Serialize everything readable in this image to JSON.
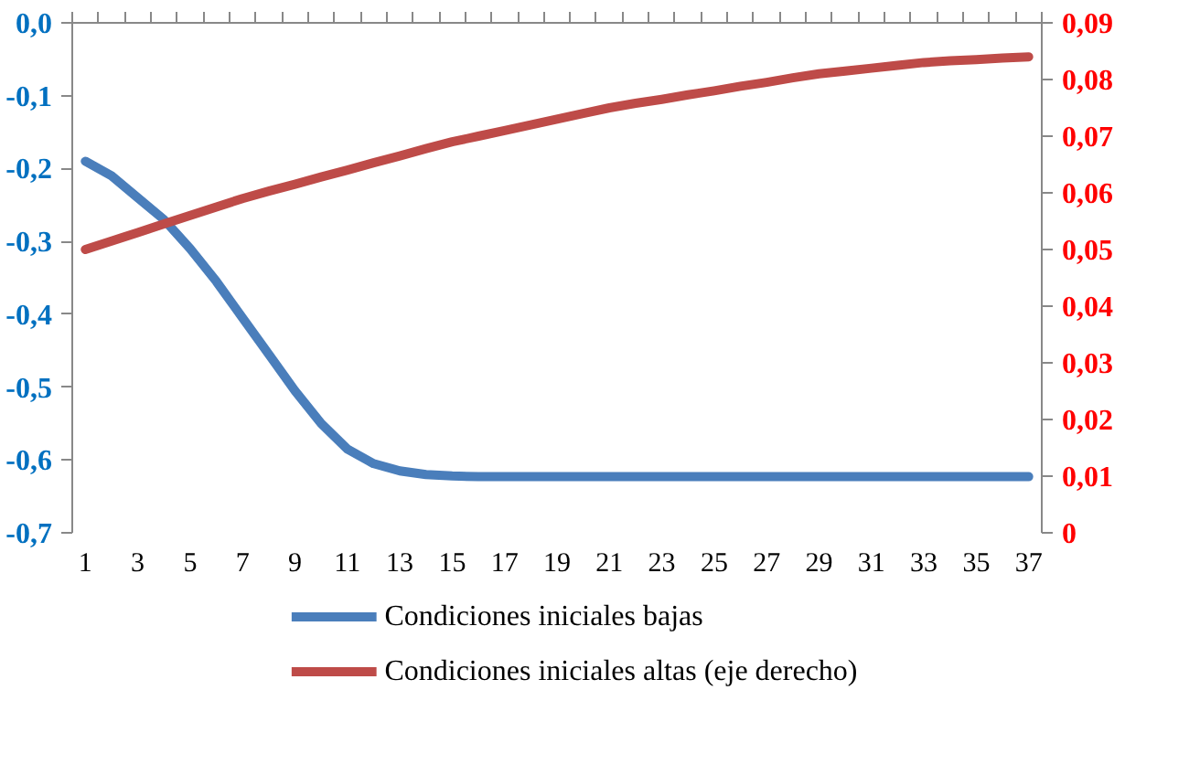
{
  "chart_data": {
    "type": "line",
    "x": [
      1,
      2,
      3,
      4,
      5,
      6,
      7,
      8,
      9,
      10,
      11,
      12,
      13,
      14,
      15,
      16,
      17,
      18,
      19,
      20,
      21,
      22,
      23,
      24,
      25,
      26,
      27,
      28,
      29,
      30,
      31,
      32,
      33,
      34,
      35,
      36,
      37
    ],
    "xlim": [
      0.5,
      37.5
    ],
    "xticks": [
      1,
      3,
      5,
      7,
      9,
      11,
      13,
      15,
      17,
      19,
      21,
      23,
      25,
      27,
      29,
      31,
      33,
      35,
      37
    ],
    "ylim": [
      -0.7,
      0
    ],
    "yticks": [
      {
        "value": 0,
        "label": "0,0"
      },
      {
        "value": -0.1,
        "label": "-0,1"
      },
      {
        "value": -0.2,
        "label": "-0,2"
      },
      {
        "value": -0.3,
        "label": "-0,3"
      },
      {
        "value": -0.4,
        "label": "-0,4"
      },
      {
        "value": -0.5,
        "label": "-0,5"
      },
      {
        "value": -0.6,
        "label": "-0,6"
      },
      {
        "value": -0.7,
        "label": "-0,7"
      }
    ],
    "y2lim": [
      0,
      0.09
    ],
    "y2ticks": [
      0,
      {
        "value": 0.01,
        "label": "0,01"
      },
      {
        "value": 0.02,
        "label": "0,02"
      },
      {
        "value": 0.03,
        "label": "0,03"
      },
      {
        "value": 0.04,
        "label": "0,04"
      },
      {
        "value": 0.05,
        "label": "0,05"
      },
      {
        "value": 0.06,
        "label": "0,06"
      },
      {
        "value": 0.07,
        "label": "0,07"
      },
      {
        "value": 0.08,
        "label": "0,08"
      },
      {
        "value": 0.09,
        "label": "0,09"
      }
    ],
    "grid": false,
    "legend": "bottom",
    "series": [
      {
        "name": "Condiciones iniciales bajas",
        "color": "#4a7ebb",
        "values": [
          -0.19,
          -0.21,
          -0.24,
          -0.27,
          -0.31,
          -0.355,
          -0.405,
          -0.455,
          -0.505,
          -0.55,
          -0.585,
          -0.605,
          -0.615,
          -0.62,
          -0.622,
          -0.623,
          -0.623,
          -0.623,
          -0.623,
          -0.623,
          -0.623,
          -0.623,
          -0.623,
          -0.623,
          -0.623,
          -0.623,
          -0.623,
          -0.623,
          -0.623,
          -0.623,
          -0.623,
          -0.623,
          -0.623,
          -0.623,
          -0.623,
          -0.623,
          -0.623
        ]
      },
      {
        "name": "Condiciones iniciales altas (eje derecho)",
        "color": "#be4b48",
        "axis": "y2",
        "values": [
          0.05,
          0.0515,
          0.053,
          0.0545,
          0.056,
          0.0575,
          0.059,
          0.0603,
          0.0615,
          0.0628,
          0.064,
          0.0653,
          0.0665,
          0.0678,
          0.069,
          0.07,
          0.071,
          0.072,
          0.073,
          0.074,
          0.075,
          0.0758,
          0.0765,
          0.0773,
          0.078,
          0.0788,
          0.0795,
          0.0803,
          0.081,
          0.0815,
          0.082,
          0.0825,
          0.083,
          0.0833,
          0.0835,
          0.0838,
          0.084
        ]
      }
    ]
  }
}
